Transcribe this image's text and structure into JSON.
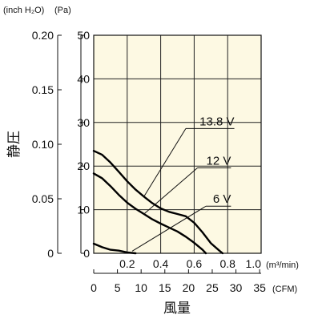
{
  "chart_data": {
    "type": "line",
    "xlabel": "風量",
    "ylabel": "静圧",
    "left_unit": "(inch H₂O)",
    "right_unit": "(Pa)",
    "x_unit_m3": "(m³/min)",
    "x_unit_cfm": "(CFM)",
    "xlim": [
      0,
      1.0
    ],
    "ylim_pa": [
      0,
      50
    ],
    "ylim_inch": [
      0,
      0.2
    ],
    "grid": true,
    "plot_background": "#fdf9e3",
    "m3_ticks": [
      "0.2",
      "0.4",
      "0.6",
      "0.8",
      "1.0"
    ],
    "cfm_ticks": [
      "0",
      "5",
      "10",
      "15",
      "20",
      "25",
      "30",
      "35"
    ],
    "pa_ticks": [
      "0",
      "10",
      "20",
      "30",
      "40",
      "50"
    ],
    "inch_ticks": [
      "0",
      "0.05",
      "0.10",
      "0.15",
      "0.20"
    ],
    "series": [
      {
        "name": "13.8 V",
        "x": [
          0,
          0.05,
          0.1,
          0.15,
          0.2,
          0.25,
          0.3,
          0.35,
          0.4,
          0.45,
          0.5,
          0.55,
          0.6,
          0.65,
          0.7,
          0.75,
          0.77
        ],
        "y": [
          23.5,
          22.6,
          20.8,
          18.7,
          16.5,
          14.6,
          13.0,
          11.5,
          10.3,
          9.5,
          9.0,
          8.5,
          7.0,
          4.8,
          2.3,
          0.6,
          0
        ]
      },
      {
        "name": "12 V",
        "x": [
          0,
          0.05,
          0.1,
          0.15,
          0.2,
          0.25,
          0.3,
          0.35,
          0.4,
          0.45,
          0.5,
          0.55,
          0.6,
          0.65,
          0.67
        ],
        "y": [
          18.3,
          17.2,
          15.4,
          13.4,
          11.6,
          10.2,
          9.0,
          7.8,
          6.8,
          5.9,
          5.0,
          3.8,
          2.4,
          0.8,
          0
        ]
      },
      {
        "name": "6 V",
        "x": [
          0,
          0.05,
          0.1,
          0.15,
          0.2,
          0.25
        ],
        "y": [
          2.2,
          1.4,
          0.8,
          0.6,
          0.2,
          0
        ]
      }
    ],
    "line_color": "#000000"
  }
}
